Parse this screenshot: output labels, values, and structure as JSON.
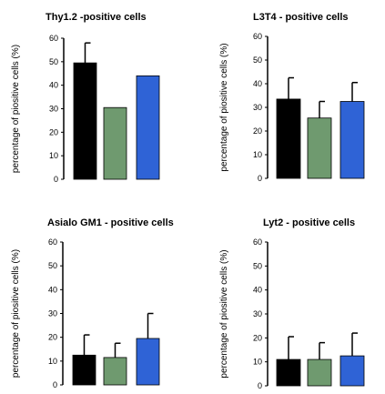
{
  "colors": {
    "bar1": "#000000",
    "bar2": "#6f9a6f",
    "bar3": "#2f63d6"
  },
  "chart_data": [
    {
      "type": "bar",
      "title": "Thy1.2 -positive cells",
      "ylabel": "percentage of piositive cells (%)",
      "xlabel": "",
      "ylim": [
        0,
        60
      ],
      "yticks": [
        0,
        10,
        20,
        30,
        40,
        50,
        60
      ],
      "values": [
        49.5,
        30.5,
        44
      ],
      "errors": [
        8.5,
        null,
        null
      ]
    },
    {
      "type": "bar",
      "title": "L3T4 - positive cells",
      "ylabel": "percentage of piositive cells (%)",
      "xlabel": "",
      "ylim": [
        0,
        60
      ],
      "yticks": [
        0,
        10,
        20,
        30,
        40,
        50,
        60
      ],
      "values": [
        33.5,
        25.5,
        32.5
      ],
      "errors": [
        9,
        7,
        8
      ]
    },
    {
      "type": "bar",
      "title": "Asialo GM1 - positive cells",
      "ylabel": "percentage of piositive cells (%)",
      "xlabel": "",
      "ylim": [
        0,
        60
      ],
      "yticks": [
        0,
        10,
        20,
        30,
        40,
        50,
        60
      ],
      "values": [
        12.5,
        11.5,
        19.5
      ],
      "errors": [
        8.5,
        6,
        10.5
      ]
    },
    {
      "type": "bar",
      "title": "Lyt2 - positive cells",
      "ylabel": "percentage of piositive cells (%)",
      "xlabel": "",
      "ylim": [
        0,
        60
      ],
      "yticks": [
        0,
        10,
        20,
        30,
        40,
        50,
        60
      ],
      "values": [
        11,
        11,
        12.5
      ],
      "errors": [
        9.5,
        7,
        9.5
      ]
    }
  ]
}
